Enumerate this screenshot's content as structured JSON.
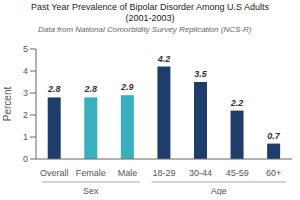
{
  "chart_data": {
    "type": "bar",
    "title": "Past Year Prevalence of Bipolar Disorder Among U.S Adults\n(2001-2003)",
    "subtitle": "Data from National Comorbidity Survey Replication (NCS-R)",
    "categories": [
      "Overall",
      "Female",
      "Male",
      "18-29",
      "30-44",
      "45-59",
      "60+"
    ],
    "values": [
      2.8,
      2.8,
      2.9,
      4.2,
      3.5,
      2.2,
      0.7
    ],
    "colors": [
      "#1f3d6b",
      "#3aafc0",
      "#3aafc0",
      "#1f3d6b",
      "#1f3d6b",
      "#1f3d6b",
      "#1f3d6b"
    ],
    "ylabel": "Percent",
    "ylim": [
      0,
      5
    ],
    "yticks": [
      0,
      1,
      2,
      3,
      4,
      5
    ],
    "grid": false,
    "data_labels": true,
    "annotations": [
      {
        "text": "Sex",
        "from": "Overall",
        "to": "Male"
      },
      {
        "text": "Age",
        "from": "18-29",
        "to": "60+"
      }
    ]
  }
}
